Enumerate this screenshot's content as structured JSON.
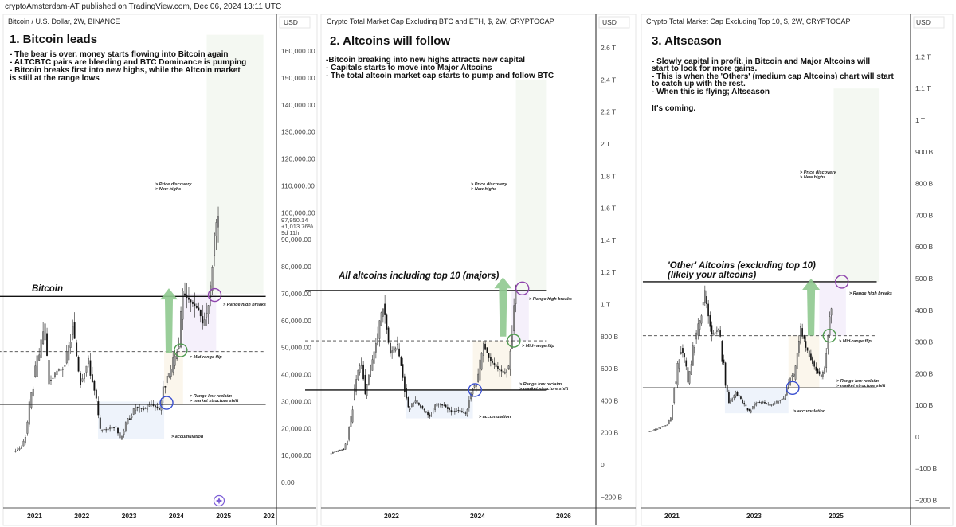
{
  "header": "cryptoAmsterdam-AT published on TradingView.com, Dec 06, 2024 13:11 UTC",
  "colors": {
    "up_body": "#9a9a9a",
    "down_body": "#111111",
    "range_high_circle": "#8e44ad",
    "mid_circle": "#4e9a4e",
    "low_circle": "#3a4fd0",
    "arrow": "#8fc98f",
    "accumulation_box": "#eef3fb",
    "reclaim_box": "#fbf6ec",
    "flip_box": "#f5f0fb",
    "discovery_box": "#f4f8f2"
  },
  "chart_data": [
    {
      "type": "candlestick",
      "symbol": "Bitcoin / U.S. Dollar, 2W, BINANCE",
      "currency": "USD",
      "title": "1. Bitcoin leads",
      "notes": [
        "- The bear is over, money starts flowing into Bitcoin again",
        "- ALTCBTC pairs are bleeding and BTC Dominance is pumping",
        "- Bitcoin breaks first into new highs, while the Altcoin market",
        "is still at the range lows"
      ],
      "series_label": "Bitcoin",
      "ylim": [
        -10000,
        170000
      ],
      "y_ticks": [
        {
          "v": 160000,
          "l": "160,000.00"
        },
        {
          "v": 150000,
          "l": "150,000.00"
        },
        {
          "v": 140000,
          "l": "140,000.00"
        },
        {
          "v": 130000,
          "l": "130,000.00"
        },
        {
          "v": 120000,
          "l": "120,000.00"
        },
        {
          "v": 110000,
          "l": "110,000.00"
        },
        {
          "v": 100000,
          "l": "100,000.00"
        },
        {
          "v": 90000,
          "l": "90,000.00"
        },
        {
          "v": 80000,
          "l": "80,000.00"
        },
        {
          "v": 70000,
          "l": "70,000.00"
        },
        {
          "v": 60000,
          "l": "60,000.00"
        },
        {
          "v": 50000,
          "l": "50,000.00"
        },
        {
          "v": 40000,
          "l": "40,000.00"
        },
        {
          "v": 30000,
          "l": "30,000.00"
        },
        {
          "v": 20000,
          "l": "20,000.00"
        },
        {
          "v": 10000,
          "l": "10,000.00"
        },
        {
          "v": 0,
          "l": "0.00"
        }
      ],
      "x_ticks": [
        "2021",
        "2022",
        "2023",
        "2024",
        "2025",
        "202"
      ],
      "last_price": {
        "value": "97,950.14",
        "change": "+1,013.76%",
        "countdown": "9d 11h"
      },
      "closes": [
        [
          "2020-08",
          11500
        ],
        [
          "2020-10",
          13000
        ],
        [
          "2020-11",
          17000
        ],
        [
          "2020-12",
          29000
        ],
        [
          "2021-02",
          45000
        ],
        [
          "2021-04",
          57000
        ],
        [
          "2021-05",
          37000
        ],
        [
          "2021-07",
          41000
        ],
        [
          "2021-09",
          43000
        ],
        [
          "2021-11",
          57000
        ],
        [
          "2022-01",
          38000
        ],
        [
          "2022-03",
          45000
        ],
        [
          "2022-05",
          30000
        ],
        [
          "2022-06",
          19000
        ],
        [
          "2022-08",
          20000
        ],
        [
          "2022-10",
          20500
        ],
        [
          "2022-11",
          16500
        ],
        [
          "2023-01",
          23000
        ],
        [
          "2023-03",
          28000
        ],
        [
          "2023-05",
          27000
        ],
        [
          "2023-07",
          29000
        ],
        [
          "2023-09",
          27000
        ],
        [
          "2023-10",
          34500
        ],
        [
          "2023-12",
          42000
        ],
        [
          "2024-02",
          52000
        ],
        [
          "2024-03",
          70000
        ],
        [
          "2024-05",
          67000
        ],
        [
          "2024-07",
          64000
        ],
        [
          "2024-08",
          59000
        ],
        [
          "2024-09",
          63000
        ],
        [
          "2024-10",
          72000
        ],
        [
          "2024-11",
          92000
        ],
        [
          "2024-12",
          97950
        ]
      ],
      "levels": {
        "range_high": 69000,
        "mid_range": 48500,
        "range_low": 29000
      },
      "labels": {
        "discovery": "> Price discovery",
        "new_highs": "> New highs",
        "range_high": "> Range high breaks",
        "mid_flip": "> Mid-range flip",
        "low_reclaim": "> Range low reclaim",
        "structure": "> market structure shift",
        "accumulation": "> accumulation"
      }
    },
    {
      "type": "candlestick",
      "symbol": "Crypto Total Market Cap Excluding BTC and ETH, $, 2W, CRYPTOCAP",
      "currency": "USD",
      "title": "2. Altcoins will follow",
      "notes": [
        "-Bitcoin breaking into new highs attracts new capital",
        "- Capitals starts to move into Major Altcoins",
        "- The total altcoin market cap starts to pump and follow BTC"
      ],
      "series_label": "All altcoins including top 10 (majors)",
      "unit": "billions USD",
      "y_ticks": [
        {
          "v": 2600,
          "l": "2.6 T"
        },
        {
          "v": 2400,
          "l": "2.4 T"
        },
        {
          "v": 2200,
          "l": "2.2 T"
        },
        {
          "v": 2000,
          "l": "2 T"
        },
        {
          "v": 1800,
          "l": "1.8 T"
        },
        {
          "v": 1600,
          "l": "1.6 T"
        },
        {
          "v": 1400,
          "l": "1.4 T"
        },
        {
          "v": 1200,
          "l": "1.2 T"
        },
        {
          "v": 1000,
          "l": "1 T"
        },
        {
          "v": 800,
          "l": "800 B"
        },
        {
          "v": 600,
          "l": "600 B"
        },
        {
          "v": 400,
          "l": "400 B"
        },
        {
          "v": 200,
          "l": "200 B"
        },
        {
          "v": 0,
          "l": "0"
        },
        {
          "v": -200,
          "l": "−200 B"
        }
      ],
      "x_ticks": [
        "2022",
        "2024",
        "2026"
      ],
      "closes": [
        [
          "2020-08",
          70
        ],
        [
          "2020-10",
          85
        ],
        [
          "2020-12",
          100
        ],
        [
          "2021-01",
          150
        ],
        [
          "2021-02",
          300
        ],
        [
          "2021-04",
          580
        ],
        [
          "2021-05",
          650
        ],
        [
          "2021-06",
          450
        ],
        [
          "2021-08",
          650
        ],
        [
          "2021-09",
          750
        ],
        [
          "2021-11",
          1000
        ],
        [
          "2021-12",
          850
        ],
        [
          "2022-01",
          700
        ],
        [
          "2022-03",
          750
        ],
        [
          "2022-05",
          470
        ],
        [
          "2022-06",
          350
        ],
        [
          "2022-08",
          400
        ],
        [
          "2022-10",
          350
        ],
        [
          "2022-12",
          300
        ],
        [
          "2023-02",
          380
        ],
        [
          "2023-04",
          370
        ],
        [
          "2023-06",
          330
        ],
        [
          "2023-08",
          340
        ],
        [
          "2023-10",
          320
        ],
        [
          "2023-11",
          400
        ],
        [
          "2023-12",
          480
        ],
        [
          "2024-01",
          500
        ],
        [
          "2024-03",
          750
        ],
        [
          "2024-05",
          650
        ],
        [
          "2024-07",
          600
        ],
        [
          "2024-09",
          570
        ],
        [
          "2024-10",
          620
        ],
        [
          "2024-11",
          850
        ],
        [
          "2024-12",
          1080
        ]
      ],
      "levels": {
        "range_high": 1087,
        "mid_range": 774,
        "range_low": 467
      },
      "labels": {
        "discovery": "> Price discovery",
        "new_highs": "> New highs",
        "range_high": "> Range high breaks",
        "mid_flip": "> Mid-range flip",
        "low_reclaim": "> Range low reclaim",
        "structure": "> market structure shift",
        "accumulation": "> accumulation"
      }
    },
    {
      "type": "candlestick",
      "symbol": "Crypto Total Market Cap Excluding Top 10, $, 2W, CRYPTOCAP",
      "currency": "USD",
      "title": "3. Altseason",
      "notes": [
        "- Slowly capital in profit, in Bitcoin and Major Altcoins will",
        "start to look for more gains.",
        "- This is when the 'Others' (medium cap Altcoins) chart will start",
        "to catch up with the rest.",
        "- When this is flying; Altseason",
        "",
        "It's coming."
      ],
      "series_label": [
        "'Other' Altcoins (excluding top 10)",
        "(likely your altcoins)"
      ],
      "unit": "billions USD",
      "y_ticks": [
        {
          "v": 1200,
          "l": "1.2 T"
        },
        {
          "v": 1100,
          "l": "1.1 T"
        },
        {
          "v": 1000,
          "l": "1 T"
        },
        {
          "v": 900,
          "l": "900 B"
        },
        {
          "v": 800,
          "l": "800 B"
        },
        {
          "v": 700,
          "l": "700 B"
        },
        {
          "v": 600,
          "l": "600 B"
        },
        {
          "v": 500,
          "l": "500 B"
        },
        {
          "v": 400,
          "l": "400 B"
        },
        {
          "v": 300,
          "l": "300 B"
        },
        {
          "v": 200,
          "l": "200 B"
        },
        {
          "v": 100,
          "l": "100 B"
        },
        {
          "v": 0,
          "l": "0"
        },
        {
          "v": -100,
          "l": "−100 B"
        },
        {
          "v": -200,
          "l": "−200 B"
        }
      ],
      "x_ticks": [
        "2021",
        "2023",
        "2025"
      ],
      "closes": [
        [
          "2020-06",
          15
        ],
        [
          "2020-10",
          30
        ],
        [
          "2020-12",
          40
        ],
        [
          "2021-01",
          60
        ],
        [
          "2021-02",
          150
        ],
        [
          "2021-04",
          280
        ],
        [
          "2021-05",
          250
        ],
        [
          "2021-06",
          180
        ],
        [
          "2021-08",
          300
        ],
        [
          "2021-09",
          350
        ],
        [
          "2021-11",
          450
        ],
        [
          "2021-12",
          380
        ],
        [
          "2022-01",
          320
        ],
        [
          "2022-03",
          340
        ],
        [
          "2022-05",
          170
        ],
        [
          "2022-06",
          110
        ],
        [
          "2022-08",
          140
        ],
        [
          "2022-10",
          110
        ],
        [
          "2022-12",
          80
        ],
        [
          "2023-02",
          110
        ],
        [
          "2023-04",
          110
        ],
        [
          "2023-06",
          100
        ],
        [
          "2023-08",
          110
        ],
        [
          "2023-10",
          120
        ],
        [
          "2023-11",
          150
        ],
        [
          "2023-12",
          190
        ],
        [
          "2024-01",
          200
        ],
        [
          "2024-03",
          340
        ],
        [
          "2024-05",
          270
        ],
        [
          "2024-07",
          220
        ],
        [
          "2024-09",
          190
        ],
        [
          "2024-10",
          220
        ],
        [
          "2024-11",
          330
        ],
        [
          "2024-12",
          420
        ]
      ],
      "levels": {
        "range_high": 490,
        "mid_range": 320,
        "range_low": 155
      },
      "labels": {
        "discovery": "> Price discovery",
        "new_highs": "> New highs",
        "range_high": "> Range high breaks",
        "mid_flip": "> Mid-range flip",
        "low_reclaim": "> Range low reclaim",
        "structure": "> market structure shift",
        "accumulation": "> accumulation"
      }
    }
  ]
}
